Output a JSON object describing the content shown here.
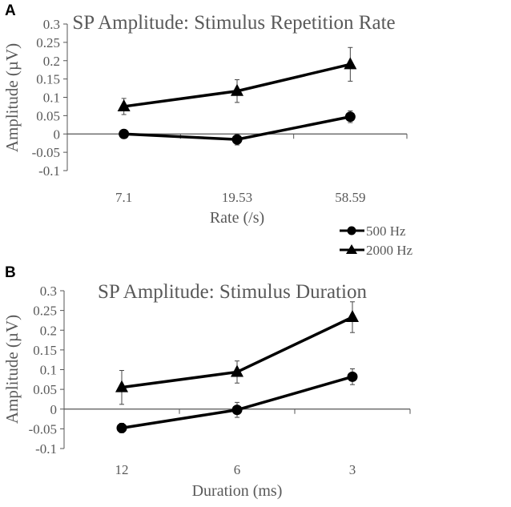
{
  "chart_data": [
    {
      "type": "line",
      "panel_label": "A",
      "title": "SP Amplitude: Stimulus Repetition Rate",
      "xlabel": "Rate (/s)",
      "ylabel": "Amplitude (µV)",
      "categories": [
        "7.1",
        "19.53",
        "58.59"
      ],
      "ylim": [
        -0.1,
        0.3
      ],
      "yticks": [
        "0.3",
        "0.25",
        "0.2",
        "0.15",
        "0.1",
        "0.05",
        "0",
        "-0.05",
        "-0.1"
      ],
      "series": [
        {
          "name": "500 Hz",
          "marker": "circle",
          "values": [
            0.0,
            -0.015,
            0.047
          ],
          "errors": [
            0.012,
            0.015,
            0.016
          ]
        },
        {
          "name": "2000 Hz",
          "marker": "triangle",
          "values": [
            0.075,
            0.117,
            0.19
          ],
          "errors": [
            0.022,
            0.031,
            0.046
          ]
        }
      ]
    },
    {
      "type": "line",
      "panel_label": "B",
      "title": "SP Amplitude: Stimulus Duration",
      "xlabel": "Duration (ms)",
      "ylabel": "Amplitude (µV)",
      "categories": [
        "12",
        "6",
        "3"
      ],
      "ylim": [
        -0.1,
        0.3
      ],
      "yticks": [
        "0.3",
        "0.25",
        "0.2",
        "0.15",
        "0.1",
        "0.05",
        "0",
        "-0.05",
        "-0.1"
      ],
      "series": [
        {
          "name": "500 Hz",
          "marker": "circle",
          "values": [
            -0.048,
            -0.002,
            0.082
          ],
          "errors": [
            0.012,
            0.019,
            0.02
          ]
        },
        {
          "name": "2000 Hz",
          "marker": "triangle",
          "values": [
            0.055,
            0.094,
            0.233
          ],
          "errors": [
            0.043,
            0.028,
            0.039
          ]
        }
      ]
    }
  ],
  "legend": {
    "items": [
      "500 Hz",
      "2000 Hz"
    ],
    "placement": "right, between panels"
  }
}
